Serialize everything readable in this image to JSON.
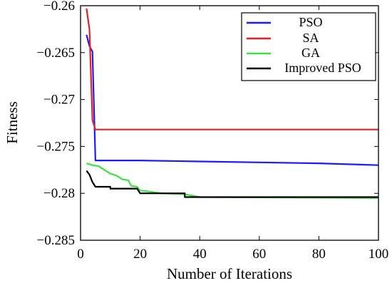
{
  "chart_data": {
    "type": "line",
    "title": "",
    "xlabel": "Number of Iterations",
    "ylabel": "Fitness",
    "xlim": [
      0,
      100
    ],
    "ylim": [
      -0.285,
      -0.26
    ],
    "xticks": [
      0,
      20,
      40,
      60,
      80,
      100
    ],
    "xtick_labels": [
      "0",
      "20",
      "40",
      "60",
      "80",
      "100"
    ],
    "yticks": [
      -0.26,
      -0.265,
      -0.27,
      -0.275,
      -0.28,
      -0.285
    ],
    "ytick_labels": [
      "−0.26",
      "−0.265",
      "−0.27",
      "−0.275",
      "−0.28",
      "−0.285"
    ],
    "grid": false,
    "legend_position": "top-right",
    "series": [
      {
        "name": "PSO",
        "color": "#1a1aff",
        "points": [
          [
            2,
            -0.2631
          ],
          [
            3,
            -0.2643
          ],
          [
            4,
            -0.2649
          ],
          [
            5,
            -0.2765
          ],
          [
            20,
            -0.2765
          ],
          [
            40,
            -0.2766
          ],
          [
            60,
            -0.2767
          ],
          [
            80,
            -0.2768
          ],
          [
            100,
            -0.277
          ]
        ]
      },
      {
        "name": "SA",
        "color": "#e62020",
        "points": [
          [
            2,
            -0.2603
          ],
          [
            3,
            -0.2625
          ],
          [
            4,
            -0.2722
          ],
          [
            5,
            -0.2732
          ],
          [
            100,
            -0.2732
          ]
        ]
      },
      {
        "name": "GA",
        "color": "#40e040",
        "points": [
          [
            2,
            -0.2768
          ],
          [
            4,
            -0.277
          ],
          [
            6,
            -0.2771
          ],
          [
            8,
            -0.2775
          ],
          [
            10,
            -0.2779
          ],
          [
            12,
            -0.2781
          ],
          [
            14,
            -0.2785
          ],
          [
            16,
            -0.2786
          ],
          [
            17,
            -0.2792
          ],
          [
            19,
            -0.2793
          ],
          [
            20,
            -0.2797
          ],
          [
            23,
            -0.2798
          ],
          [
            27,
            -0.28
          ],
          [
            35,
            -0.2801
          ],
          [
            40,
            -0.2804
          ],
          [
            100,
            -0.2805
          ]
        ]
      },
      {
        "name": "Improved PSO",
        "color": "#000000",
        "points": [
          [
            2,
            -0.2776
          ],
          [
            3,
            -0.278
          ],
          [
            4,
            -0.2788
          ],
          [
            5,
            -0.2793
          ],
          [
            10,
            -0.2793
          ],
          [
            10,
            -0.2795
          ],
          [
            19,
            -0.2795
          ],
          [
            20,
            -0.28
          ],
          [
            35,
            -0.28
          ],
          [
            35,
            -0.2804
          ],
          [
            100,
            -0.2804
          ]
        ]
      }
    ]
  }
}
